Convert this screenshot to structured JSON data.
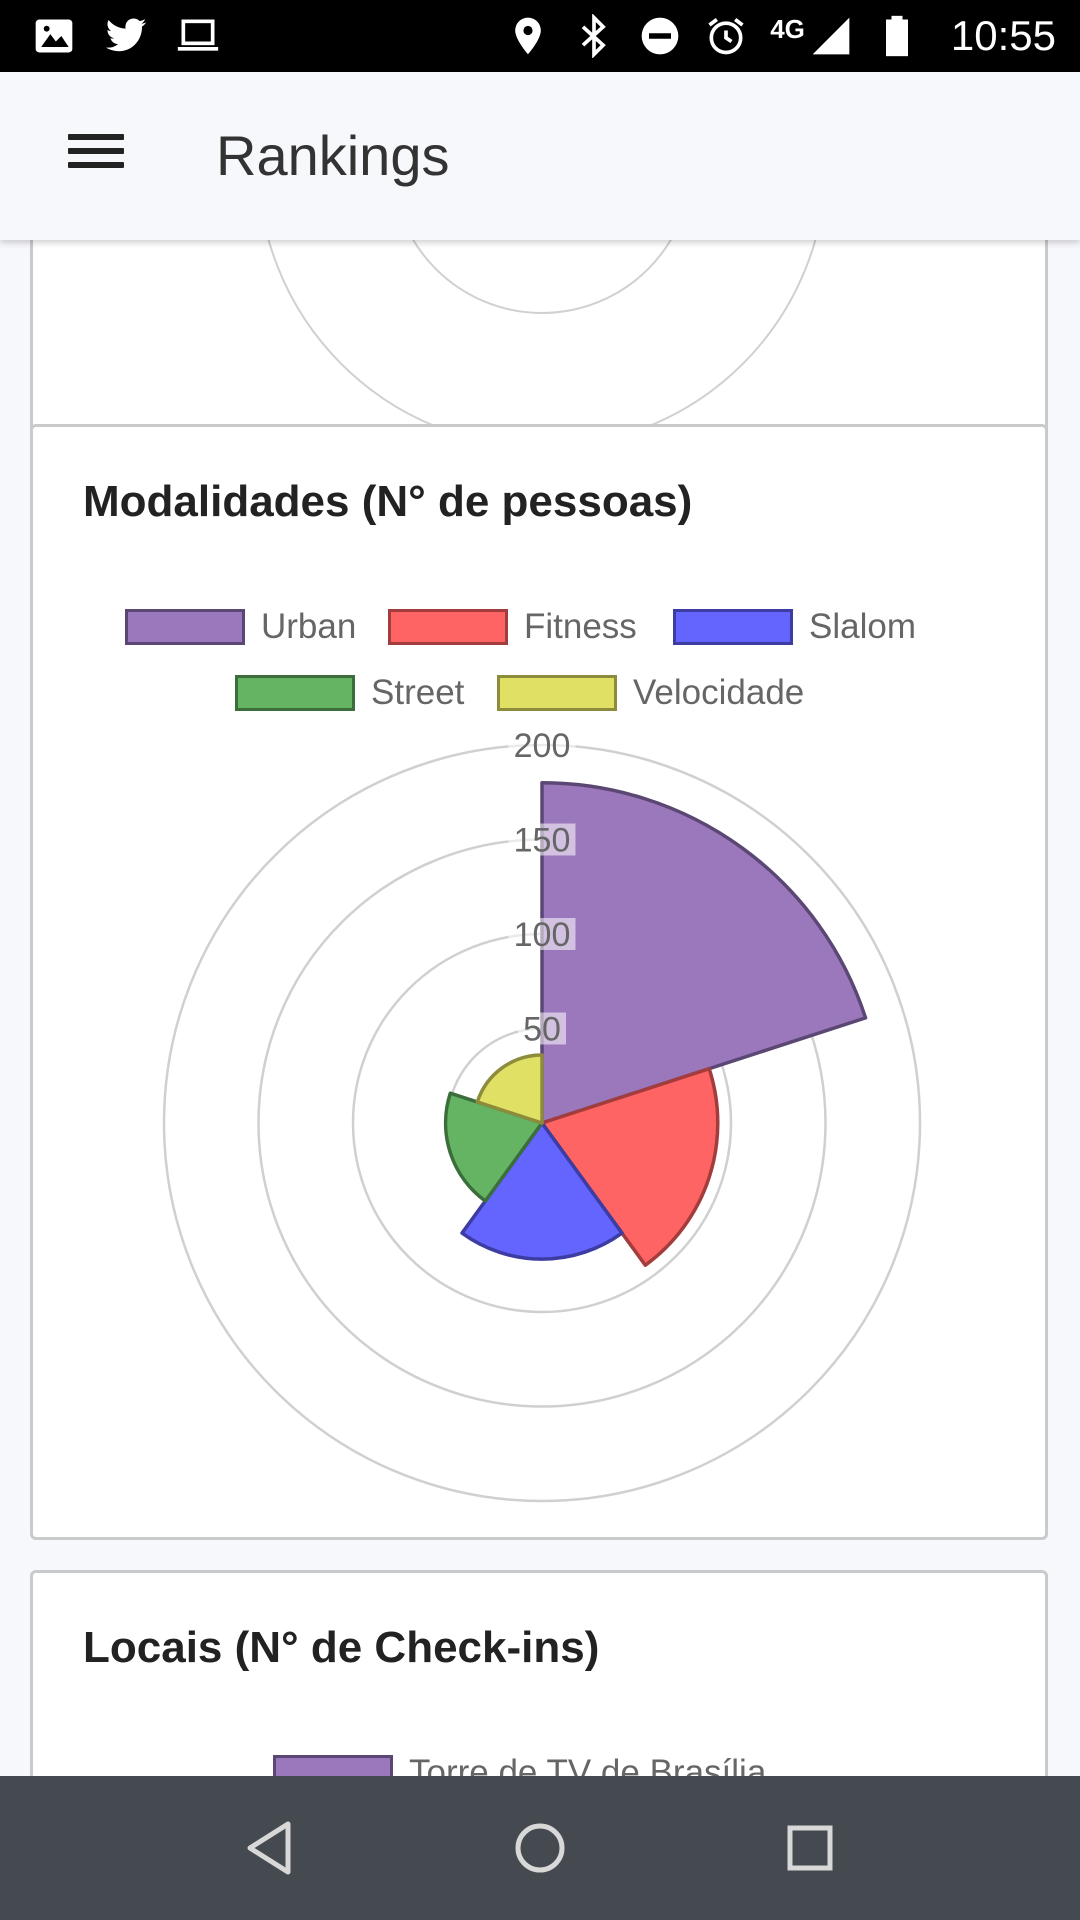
{
  "status_bar": {
    "time": "10:55",
    "network": "4G",
    "left_icons": [
      "image-icon",
      "twitter-icon",
      "laptop-icon"
    ],
    "right_icons": [
      "location-icon",
      "bluetooth-icon",
      "do-not-disturb-icon",
      "alarm-icon",
      "signal-icon",
      "battery-icon"
    ]
  },
  "app_bar": {
    "title": "Rankings",
    "menu_icon": "menu-icon"
  },
  "cards": {
    "modalidades": {
      "title": "Modalidades (N° de pessoas)"
    },
    "locais": {
      "title": "Locais (N° de Check-ins)",
      "legend_first": "Torre de TV de Brasília",
      "legend_first_color": "#9b77bb"
    }
  },
  "chart_data": {
    "type": "polarArea",
    "title": "Modalidades (N° de pessoas)",
    "categories": [
      "Urban",
      "Fitness",
      "Slalom",
      "Street",
      "Velocidade"
    ],
    "values": [
      180,
      93,
      72,
      51,
      36
    ],
    "colors": [
      "#9b77bb",
      "#ff6464",
      "#6464ff",
      "#64b464",
      "#e0e064"
    ],
    "border_colors": [
      "#5b4774",
      "#a33c3c",
      "#3c3ca3",
      "#3c6e3c",
      "#8c8c3c"
    ],
    "r_ticks": [
      50,
      100,
      150,
      200
    ],
    "r_tick_labels": [
      "50",
      "100",
      "150",
      "200"
    ],
    "rlim": [
      0,
      200
    ],
    "grid": true,
    "legend_position": "top"
  },
  "nav_bar": {
    "icons": [
      "back-icon",
      "home-icon",
      "recents-icon"
    ]
  }
}
